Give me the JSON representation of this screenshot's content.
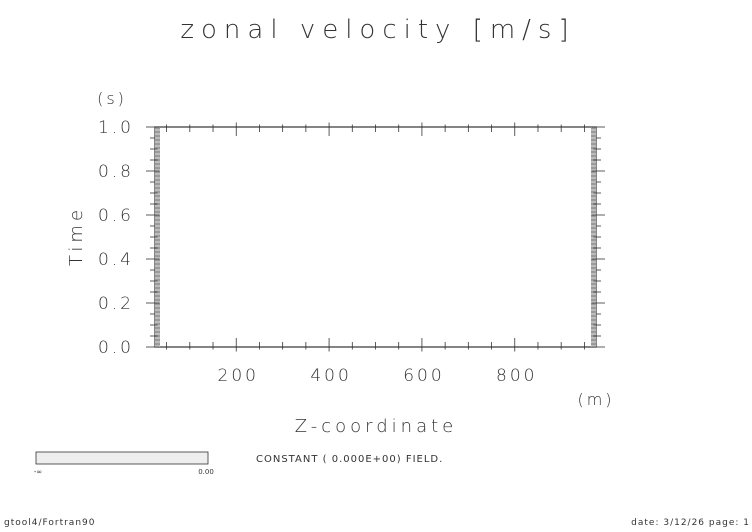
{
  "chart_data": {
    "type": "heatmap",
    "title": "zonal velocity [m/s]",
    "xlabel": "Z-coordinate",
    "xunit": "(m)",
    "ylabel": "Time",
    "yunit": "(s)",
    "xlim": [
      25,
      975
    ],
    "ylim": [
      0.0,
      1.0
    ],
    "x_major_ticks": [
      200,
      400,
      600,
      800
    ],
    "x_tick_labels": [
      "200",
      "400",
      "600",
      "800"
    ],
    "y_major_ticks": [
      0.0,
      0.2,
      0.4,
      0.6,
      0.8,
      1.0
    ],
    "y_tick_labels": [
      "0.0",
      "0.2",
      "0.4",
      "0.6",
      "0.8",
      "1.0"
    ],
    "field_message": "CONSTANT ( 0.000E+00) FIELD.",
    "colorbar": {
      "min_label": "-∞",
      "max_label": "0.00"
    }
  },
  "footer": {
    "left": "gtool4/Fortran90",
    "right": "date: 3/12/26 page: 1"
  },
  "colors": {
    "line": "#333333",
    "band": "#9a9a9a",
    "colorbar": "#eeeeee"
  }
}
